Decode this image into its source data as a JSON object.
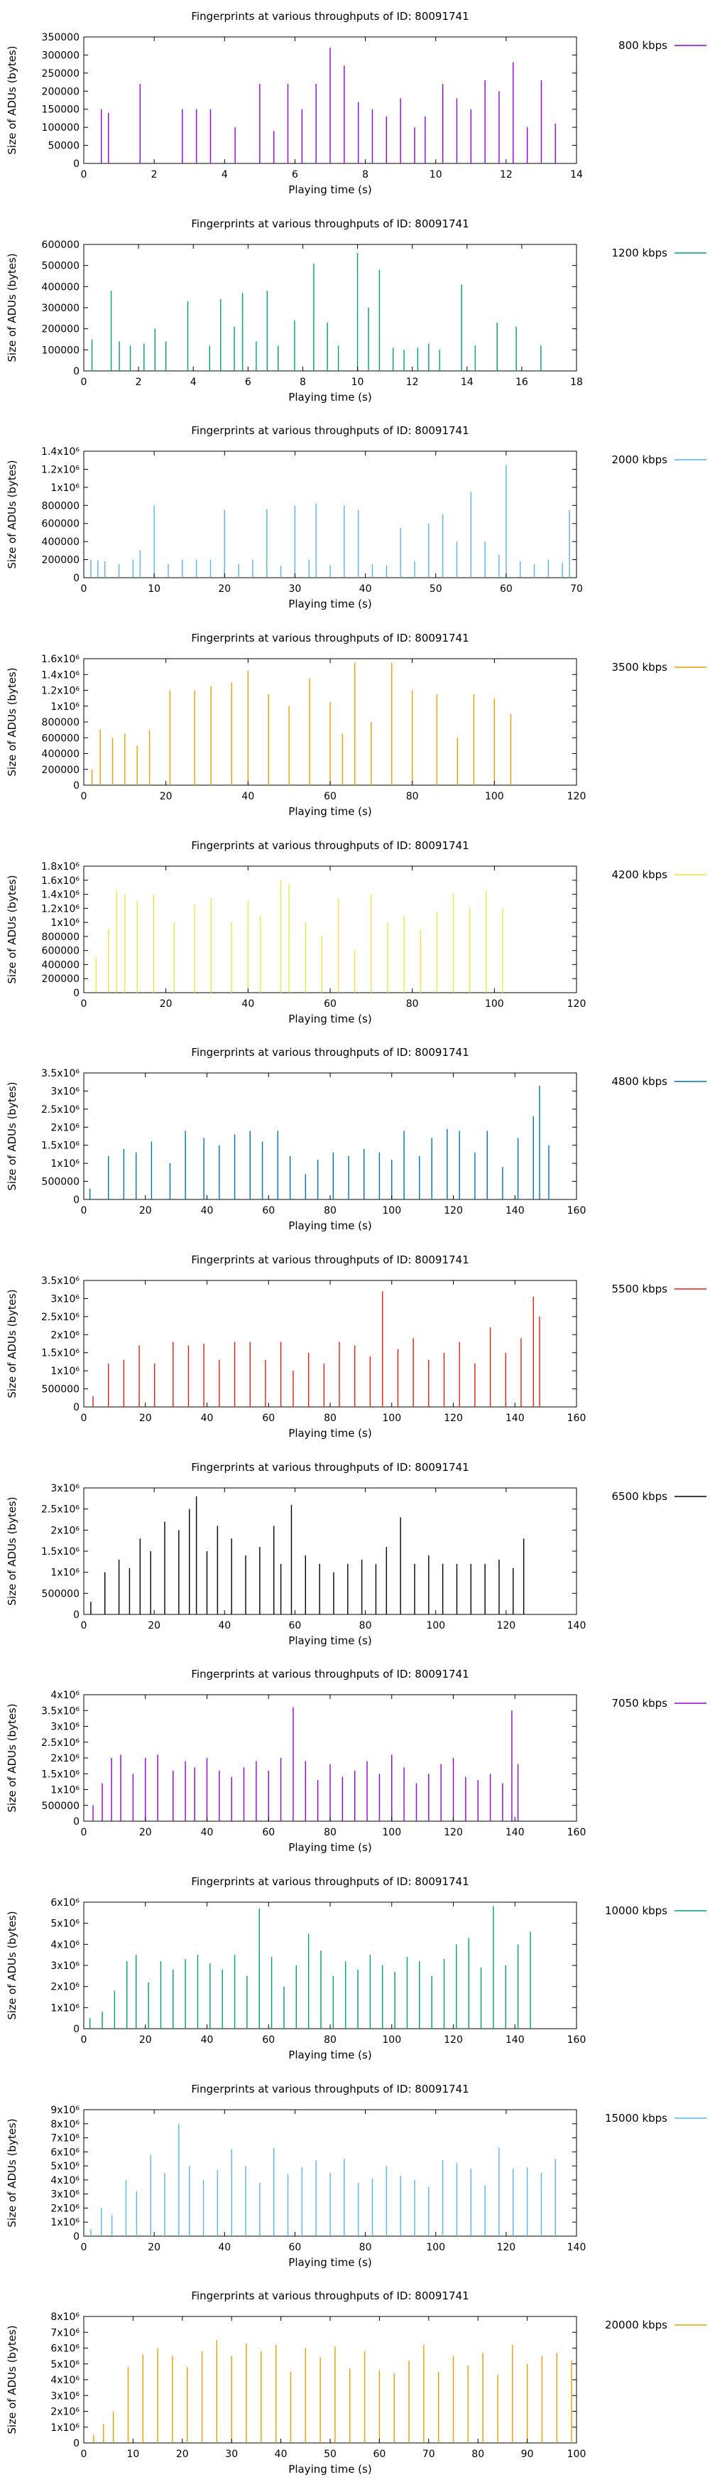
{
  "chart_data": [
    {
      "type": "bar",
      "title": "Fingerprints at various throughputs of ID: 80091741",
      "xlabel": "Playing time (s)",
      "ylabel": "Size of ADUs (bytes)",
      "legend": "800 kbps",
      "color": "#9400d3",
      "xlim": [
        0,
        14
      ],
      "xticks": [
        "0",
        "2",
        "4",
        "6",
        "8",
        "10",
        "12",
        "14"
      ],
      "ylim": [
        0,
        350000
      ],
      "yticks": [
        "0",
        "50000",
        "100000",
        "150000",
        "200000",
        "250000",
        "300000",
        "350000"
      ],
      "x": [
        0.5,
        0.7,
        1.6,
        2.8,
        3.2,
        3.6,
        4.3,
        5.0,
        5.4,
        5.8,
        6.2,
        6.6,
        7.0,
        7.4,
        7.8,
        8.2,
        8.6,
        9.0,
        9.4,
        9.7,
        10.2,
        10.6,
        11.0,
        11.4,
        11.8,
        12.2,
        12.6,
        13.0,
        13.4
      ],
      "values": [
        150000,
        140000,
        220000,
        150000,
        150000,
        150000,
        100000,
        220000,
        90000,
        220000,
        150000,
        220000,
        320000,
        270000,
        170000,
        150000,
        130000,
        180000,
        100000,
        130000,
        220000,
        180000,
        150000,
        230000,
        200000,
        280000,
        100000,
        230000,
        110000
      ]
    },
    {
      "type": "bar",
      "title": "Fingerprints at various throughputs of ID: 80091741",
      "xlabel": "Playing time (s)",
      "ylabel": "Size of ADUs (bytes)",
      "legend": "1200 kbps",
      "color": "#009e73",
      "xlim": [
        0,
        18
      ],
      "xticks": [
        "0",
        "2",
        "4",
        "6",
        "8",
        "10",
        "12",
        "14",
        "16",
        "18"
      ],
      "ylim": [
        0,
        600000
      ],
      "yticks": [
        "0",
        "100000",
        "200000",
        "300000",
        "400000",
        "500000",
        "600000"
      ],
      "x": [
        0.3,
        1.0,
        1.3,
        1.7,
        2.2,
        2.6,
        3.0,
        3.8,
        4.6,
        5.0,
        5.5,
        5.8,
        6.3,
        6.7,
        7.1,
        7.7,
        8.4,
        8.9,
        9.3,
        10.0,
        10.4,
        10.8,
        11.3,
        11.7,
        12.2,
        12.6,
        13.0,
        13.8,
        14.3,
        15.1,
        15.8,
        16.7
      ],
      "values": [
        150000,
        380000,
        140000,
        120000,
        130000,
        200000,
        140000,
        330000,
        120000,
        340000,
        210000,
        370000,
        140000,
        380000,
        120000,
        240000,
        510000,
        230000,
        120000,
        560000,
        300000,
        480000,
        110000,
        100000,
        110000,
        130000,
        100000,
        410000,
        120000,
        230000,
        210000,
        120000
      ]
    },
    {
      "type": "bar",
      "title": "Fingerprints at various throughputs of ID: 80091741",
      "xlabel": "Playing time (s)",
      "ylabel": "Size of ADUs (bytes)",
      "legend": "2000 kbps",
      "color": "#56b4e9",
      "xlim": [
        0,
        70
      ],
      "xticks": [
        "0",
        "10",
        "20",
        "30",
        "40",
        "50",
        "60",
        "70"
      ],
      "ylim": [
        0,
        1400000
      ],
      "yticks": [
        "0",
        "200000",
        "400000",
        "600000",
        "800000",
        "1x10⁶",
        "1.2x10⁶",
        "1.4x10⁶"
      ],
      "x": [
        1,
        2,
        3,
        5,
        7,
        8,
        10,
        12,
        14,
        16,
        18,
        20,
        22,
        24,
        26,
        28,
        30,
        32,
        33,
        35,
        37,
        39,
        41,
        43,
        45,
        47,
        49,
        51,
        53,
        55,
        57,
        59,
        60,
        62,
        64,
        66,
        68,
        69
      ],
      "values": [
        200000,
        190000,
        180000,
        150000,
        200000,
        300000,
        800000,
        150000,
        200000,
        200000,
        200000,
        750000,
        150000,
        200000,
        760000,
        130000,
        800000,
        200000,
        820000,
        140000,
        800000,
        750000,
        150000,
        140000,
        550000,
        180000,
        600000,
        700000,
        400000,
        950000,
        400000,
        250000,
        1250000,
        180000,
        150000,
        200000,
        170000,
        750000
      ]
    },
    {
      "type": "bar",
      "title": "Fingerprints at various throughputs of ID: 80091741",
      "xlabel": "Playing time (s)",
      "ylabel": "Size of ADUs (bytes)",
      "legend": "3500 kbps",
      "color": "#e69f00",
      "xlim": [
        0,
        120
      ],
      "xticks": [
        "0",
        "20",
        "40",
        "60",
        "80",
        "100",
        "120"
      ],
      "ylim": [
        0,
        1600000
      ],
      "yticks": [
        "0",
        "200000",
        "400000",
        "600000",
        "800000",
        "1x10⁶",
        "1.2x10⁶",
        "1.4x10⁶",
        "1.6x10⁶"
      ],
      "x": [
        2,
        4,
        7,
        10,
        13,
        16,
        21,
        27,
        31,
        36,
        40,
        45,
        50,
        55,
        60,
        63,
        66,
        70,
        75,
        80,
        86,
        91,
        95,
        100,
        104
      ],
      "values": [
        200000,
        700000,
        600000,
        650000,
        500000,
        700000,
        1200000,
        1200000,
        1250000,
        1300000,
        1450000,
        1150000,
        1000000,
        1350000,
        1050000,
        650000,
        1550000,
        800000,
        1550000,
        1200000,
        1150000,
        600000,
        1150000,
        1100000,
        900000
      ]
    },
    {
      "type": "bar",
      "title": "Fingerprints at various throughputs of ID: 80091741",
      "xlabel": "Playing time (s)",
      "ylabel": "Size of ADUs (bytes)",
      "legend": "4200 kbps",
      "color": "#f0e442",
      "xlim": [
        0,
        120
      ],
      "xticks": [
        "0",
        "20",
        "40",
        "60",
        "80",
        "100",
        "120"
      ],
      "ylim": [
        0,
        1800000
      ],
      "yticks": [
        "0",
        "200000",
        "400000",
        "600000",
        "800000",
        "1x10⁶",
        "1.2x10⁶",
        "1.4x10⁶",
        "1.6x10⁶",
        "1.8x10⁶"
      ],
      "x": [
        3,
        6,
        8,
        10,
        13,
        17,
        22,
        27,
        31,
        36,
        40,
        43,
        48,
        50,
        54,
        58,
        62,
        66,
        70,
        74,
        78,
        82,
        86,
        90,
        94,
        98,
        102
      ],
      "values": [
        500000,
        900000,
        1450000,
        1400000,
        1300000,
        1400000,
        1000000,
        1250000,
        1350000,
        1000000,
        1300000,
        1100000,
        1600000,
        1550000,
        1000000,
        800000,
        1350000,
        600000,
        1400000,
        1000000,
        1100000,
        900000,
        1150000,
        1400000,
        1200000,
        1450000,
        1200000
      ]
    },
    {
      "type": "bar",
      "title": "Fingerprints at various throughputs of ID: 80091741",
      "xlabel": "Playing time (s)",
      "ylabel": "Size of ADUs (bytes)",
      "legend": "4800 kbps",
      "color": "#0072b2",
      "xlim": [
        0,
        160
      ],
      "xticks": [
        "0",
        "20",
        "40",
        "60",
        "80",
        "100",
        "120",
        "140",
        "160"
      ],
      "ylim": [
        0,
        3500000
      ],
      "yticks": [
        "0",
        "500000",
        "1x10⁶",
        "1.5x10⁶",
        "2x10⁶",
        "2.5x10⁶",
        "3x10⁶",
        "3.5x10⁶"
      ],
      "x": [
        2,
        8,
        13,
        17,
        22,
        28,
        33,
        39,
        44,
        49,
        54,
        58,
        63,
        67,
        72,
        76,
        81,
        86,
        91,
        96,
        100,
        104,
        109,
        113,
        118,
        122,
        127,
        131,
        136,
        141,
        146,
        148,
        151
      ],
      "values": [
        300000,
        1200000,
        1400000,
        1300000,
        1600000,
        1000000,
        1900000,
        1700000,
        1500000,
        1800000,
        1900000,
        1600000,
        1900000,
        1200000,
        700000,
        1100000,
        1300000,
        1200000,
        1400000,
        1300000,
        1100000,
        1900000,
        1200000,
        1700000,
        1950000,
        1900000,
        1300000,
        1900000,
        900000,
        1700000,
        2300000,
        3150000,
        1500000
      ]
    },
    {
      "type": "bar",
      "title": "Fingerprints at various throughputs of ID: 80091741",
      "xlabel": "Playing time (s)",
      "ylabel": "Size of ADUs (bytes)",
      "legend": "5500 kbps",
      "color": "#e51e10",
      "xlim": [
        0,
        160
      ],
      "xticks": [
        "0",
        "20",
        "40",
        "60",
        "80",
        "100",
        "120",
        "140",
        "160"
      ],
      "ylim": [
        0,
        3500000
      ],
      "yticks": [
        "0",
        "500000",
        "1x10⁶",
        "1.5x10⁶",
        "2x10⁶",
        "2.5x10⁶",
        "3x10⁶",
        "3.5x10⁶"
      ],
      "x": [
        3,
        8,
        13,
        18,
        23,
        29,
        34,
        39,
        44,
        49,
        54,
        59,
        64,
        68,
        73,
        78,
        83,
        88,
        93,
        97,
        102,
        107,
        112,
        117,
        122,
        127,
        132,
        137,
        142,
        146,
        148
      ],
      "values": [
        300000,
        1200000,
        1300000,
        1700000,
        1200000,
        1800000,
        1700000,
        1750000,
        1300000,
        1800000,
        1800000,
        1300000,
        1800000,
        1000000,
        1500000,
        1200000,
        1800000,
        1700000,
        1400000,
        3200000,
        1600000,
        1900000,
        1300000,
        1500000,
        1800000,
        1200000,
        2200000,
        1500000,
        1900000,
        3050000,
        2500000
      ]
    },
    {
      "type": "bar",
      "title": "Fingerprints at various throughputs of ID: 80091741",
      "xlabel": "Playing time (s)",
      "ylabel": "Size of ADUs (bytes)",
      "legend": "6500 kbps",
      "color": "#000000",
      "xlim": [
        0,
        140
      ],
      "xticks": [
        "0",
        "20",
        "40",
        "60",
        "80",
        "100",
        "120",
        "140"
      ],
      "ylim": [
        0,
        3000000
      ],
      "yticks": [
        "0",
        "500000",
        "1x10⁶",
        "1.5x10⁶",
        "2x10⁶",
        "2.5x10⁶",
        "3x10⁶"
      ],
      "x": [
        2,
        6,
        10,
        13,
        16,
        19,
        23,
        27,
        30,
        32,
        35,
        38,
        42,
        46,
        50,
        54,
        56,
        59,
        63,
        67,
        71,
        75,
        79,
        83,
        86,
        90,
        94,
        98,
        102,
        106,
        110,
        114,
        118,
        122,
        125
      ],
      "values": [
        300000,
        1000000,
        1300000,
        1100000,
        1800000,
        1500000,
        2200000,
        2000000,
        2500000,
        2800000,
        1500000,
        2100000,
        1800000,
        1400000,
        1600000,
        2100000,
        1200000,
        2600000,
        1400000,
        1200000,
        1000000,
        1200000,
        1300000,
        1200000,
        1600000,
        2300000,
        1200000,
        1400000,
        1200000,
        1200000,
        1200000,
        1200000,
        1300000,
        1100000,
        1800000
      ]
    },
    {
      "type": "bar",
      "title": "Fingerprints at various throughputs of ID: 80091741",
      "xlabel": "Playing time (s)",
      "ylabel": "Size of ADUs (bytes)",
      "legend": "7050 kbps",
      "color": "#9400d3",
      "xlim": [
        0,
        160
      ],
      "xticks": [
        "0",
        "20",
        "40",
        "60",
        "80",
        "100",
        "120",
        "140",
        "160"
      ],
      "ylim": [
        0,
        4000000
      ],
      "yticks": [
        "0",
        "500000",
        "1x10⁶",
        "1.5x10⁶",
        "2x10⁶",
        "2.5x10⁶",
        "3x10⁶",
        "3.5x10⁶",
        "4x10⁶"
      ],
      "x": [
        3,
        6,
        9,
        12,
        16,
        20,
        24,
        29,
        33,
        36,
        40,
        44,
        48,
        52,
        56,
        60,
        64,
        68,
        72,
        76,
        80,
        84,
        88,
        92,
        96,
        100,
        104,
        108,
        112,
        116,
        120,
        124,
        128,
        132,
        136,
        139,
        141
      ],
      "values": [
        500000,
        1200000,
        2000000,
        2100000,
        1500000,
        2000000,
        2100000,
        1600000,
        1900000,
        1700000,
        2000000,
        1600000,
        1400000,
        1700000,
        1900000,
        1600000,
        2000000,
        3600000,
        1900000,
        1300000,
        1800000,
        1400000,
        1600000,
        1900000,
        1500000,
        2100000,
        1700000,
        1200000,
        1500000,
        1800000,
        2000000,
        1400000,
        1300000,
        1500000,
        1200000,
        3500000,
        1800000
      ]
    },
    {
      "type": "bar",
      "title": "Fingerprints at various throughputs of ID: 80091741",
      "xlabel": "Playing time (s)",
      "ylabel": "Size of ADUs (bytes)",
      "legend": "10000 kbps",
      "color": "#009e73",
      "xlim": [
        0,
        160
      ],
      "xticks": [
        "0",
        "20",
        "40",
        "60",
        "80",
        "100",
        "120",
        "140",
        "160"
      ],
      "ylim": [
        0,
        6000000
      ],
      "yticks": [
        "0",
        "1x10⁶",
        "2x10⁶",
        "3x10⁶",
        "4x10⁶",
        "5x10⁶",
        "6x10⁶"
      ],
      "x": [
        2,
        6,
        10,
        14,
        17,
        21,
        25,
        29,
        33,
        37,
        41,
        45,
        49,
        53,
        57,
        61,
        65,
        69,
        73,
        77,
        81,
        85,
        89,
        93,
        97,
        101,
        105,
        109,
        113,
        117,
        121,
        125,
        129,
        133,
        137,
        141,
        145
      ],
      "values": [
        500000,
        800000,
        1800000,
        3200000,
        3500000,
        2200000,
        3200000,
        2800000,
        3300000,
        3500000,
        3100000,
        2800000,
        3500000,
        2500000,
        5700000,
        3400000,
        2000000,
        3000000,
        4500000,
        3700000,
        2500000,
        3200000,
        2800000,
        3500000,
        3000000,
        2700000,
        3400000,
        3200000,
        2500000,
        3300000,
        4000000,
        4300000,
        2900000,
        5800000,
        3000000,
        4000000,
        4600000
      ]
    },
    {
      "type": "bar",
      "title": "Fingerprints at various throughputs of ID: 80091741",
      "xlabel": "Playing time (s)",
      "ylabel": "Size of ADUs (bytes)",
      "legend": "15000 kbps",
      "color": "#56b4e9",
      "xlim": [
        0,
        140
      ],
      "xticks": [
        "0",
        "20",
        "40",
        "60",
        "80",
        "100",
        "120",
        "140"
      ],
      "ylim": [
        0,
        9000000
      ],
      "yticks": [
        "0",
        "1x10⁶",
        "2x10⁶",
        "3x10⁶",
        "4x10⁶",
        "5x10⁶",
        "6x10⁶",
        "7x10⁶",
        "8x10⁶",
        "9x10⁶"
      ],
      "x": [
        2,
        5,
        8,
        12,
        15,
        19,
        23,
        27,
        30,
        34,
        38,
        42,
        46,
        50,
        54,
        58,
        62,
        66,
        70,
        74,
        78,
        82,
        86,
        90,
        94,
        98,
        102,
        106,
        110,
        114,
        118,
        122,
        126,
        130,
        134
      ],
      "values": [
        500000,
        2000000,
        1500000,
        4000000,
        3200000,
        5800000,
        4500000,
        8000000,
        5000000,
        4000000,
        4700000,
        6200000,
        5000000,
        3800000,
        6300000,
        4400000,
        4900000,
        5400000,
        4500000,
        5500000,
        3800000,
        4100000,
        5000000,
        4300000,
        4000000,
        3500000,
        5400000,
        5200000,
        4800000,
        3600000,
        6300000,
        4800000,
        4900000,
        4500000,
        5500000
      ]
    },
    {
      "type": "bar",
      "title": "Fingerprints at various throughputs of ID: 80091741",
      "xlabel": "Playing time (s)",
      "ylabel": "Size of ADUs (bytes)",
      "legend": "20000 kbps",
      "color": "#e69f00",
      "xlim": [
        0,
        100
      ],
      "xticks": [
        "0",
        "10",
        "20",
        "30",
        "40",
        "50",
        "60",
        "70",
        "80",
        "90",
        "100"
      ],
      "ylim": [
        0,
        8000000
      ],
      "yticks": [
        "0",
        "1x10⁶",
        "2x10⁶",
        "3x10⁶",
        "4x10⁶",
        "5x10⁶",
        "6x10⁶",
        "7x10⁶",
        "8x10⁶"
      ],
      "x": [
        2,
        4,
        6,
        9,
        12,
        15,
        18,
        21,
        24,
        27,
        30,
        33,
        36,
        39,
        42,
        45,
        48,
        51,
        54,
        57,
        60,
        63,
        66,
        69,
        72,
        75,
        78,
        81,
        84,
        87,
        90,
        93,
        96,
        99
      ],
      "values": [
        500000,
        1200000,
        2000000,
        4800000,
        5600000,
        6000000,
        5500000,
        4800000,
        5800000,
        6500000,
        5500000,
        6300000,
        5800000,
        6200000,
        4500000,
        6000000,
        5400000,
        6100000,
        4700000,
        5800000,
        4600000,
        4400000,
        5200000,
        6200000,
        4500000,
        5500000,
        4900000,
        5700000,
        4300000,
        6200000,
        5000000,
        5500000,
        5700000,
        5200000
      ]
    }
  ]
}
